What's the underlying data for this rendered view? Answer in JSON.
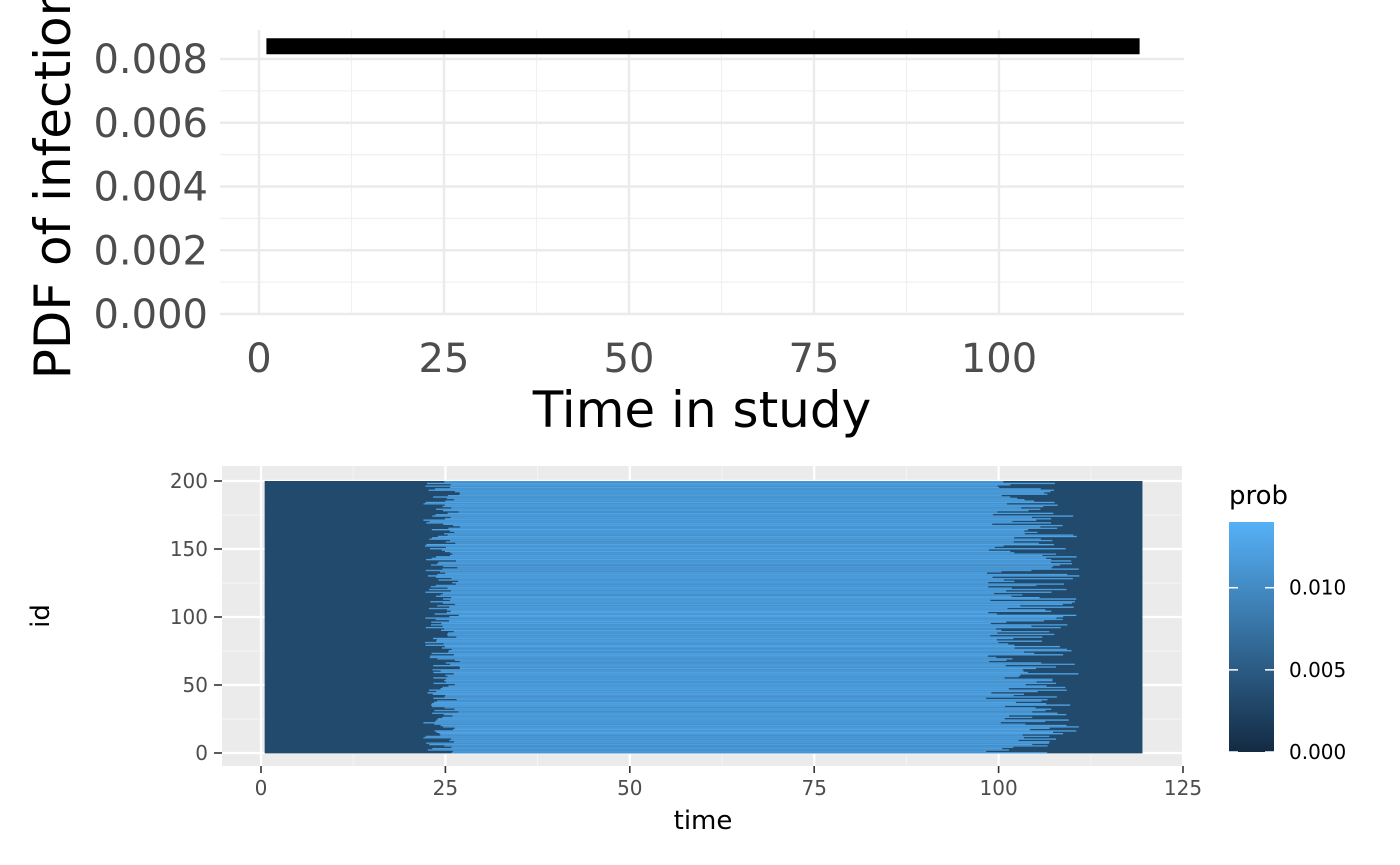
{
  "chart_data": [
    {
      "type": "line",
      "xlabel": "Time in study",
      "ylabel": "PDF of infection",
      "xlim": [
        -10,
        120
      ],
      "ylim": [
        0,
        0.0086
      ],
      "xticks": [
        "0",
        "25",
        "50",
        "75",
        "100"
      ],
      "yticks": [
        "0.000",
        "0.002",
        "0.004",
        "0.006",
        "0.008"
      ],
      "grid": true,
      "series": [
        {
          "x": [
            1,
            119
          ],
          "y": [
            0.0084,
            0.0084
          ],
          "color": "#000000"
        }
      ]
    },
    {
      "type": "heatmap",
      "xlabel": "time",
      "ylabel": "id",
      "xlim": [
        0,
        125
      ],
      "ylim": [
        0,
        200
      ],
      "xticks": [
        "0",
        "25",
        "50",
        "75",
        "100",
        "125"
      ],
      "yticks": [
        "0",
        "50",
        "100",
        "150",
        "200"
      ],
      "grid": true,
      "n_ids": 200,
      "time_range": [
        1,
        119
      ],
      "high_region_start_range": [
        22,
        27
      ],
      "high_region_end_range": [
        98,
        111
      ],
      "low_value": 0.0,
      "high_value": 0.0125,
      "legend": {
        "title": "prob",
        "ticks": [
          "0.000",
          "0.005",
          "0.010"
        ],
        "range": [
          0,
          0.014
        ],
        "low_color": "#132B43",
        "high_color": "#56B1F7"
      }
    }
  ]
}
